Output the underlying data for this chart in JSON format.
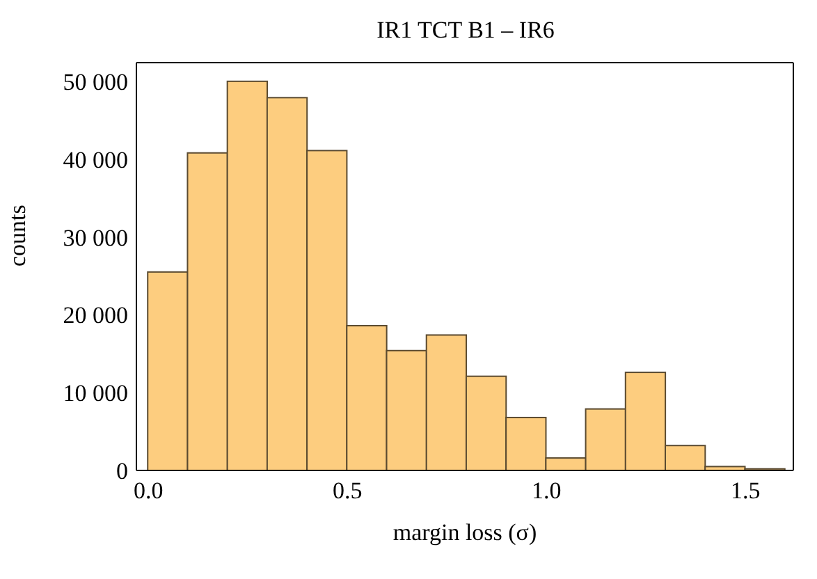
{
  "chart_data": {
    "type": "histogram",
    "title": "IR1 TCT B1 – IR6",
    "xlabel": "margin  loss (σ)",
    "ylabel": "counts",
    "bins": [
      0,
      0.1,
      0.2,
      0.3,
      0.4,
      0.5,
      0.6,
      0.7,
      0.8,
      0.9,
      1.0,
      1.1,
      1.2,
      1.3,
      1.4,
      1.5,
      1.6
    ],
    "values": [
      25500,
      40800,
      50000,
      47900,
      41100,
      18600,
      15400,
      17400,
      12100,
      6800,
      1600,
      7900,
      12600,
      3200,
      500,
      200
    ],
    "color": "#fdcd7f",
    "xlim": [
      -0.03,
      1.62
    ],
    "xticks": [
      {
        "value": 0,
        "label": "0.0"
      },
      0.5,
      {
        "value": 1,
        "label": "1.0"
      },
      1.5
    ],
    "ylim": [
      0,
      52400
    ],
    "yticks": [
      0,
      {
        "value": 10000,
        "label": "10 000"
      },
      {
        "value": 20000,
        "label": "20 000"
      },
      {
        "value": 30000,
        "label": "30 000"
      },
      {
        "value": 40000,
        "label": "40 000"
      },
      {
        "value": 50000,
        "label": "50 000"
      }
    ],
    "grid": false
  }
}
